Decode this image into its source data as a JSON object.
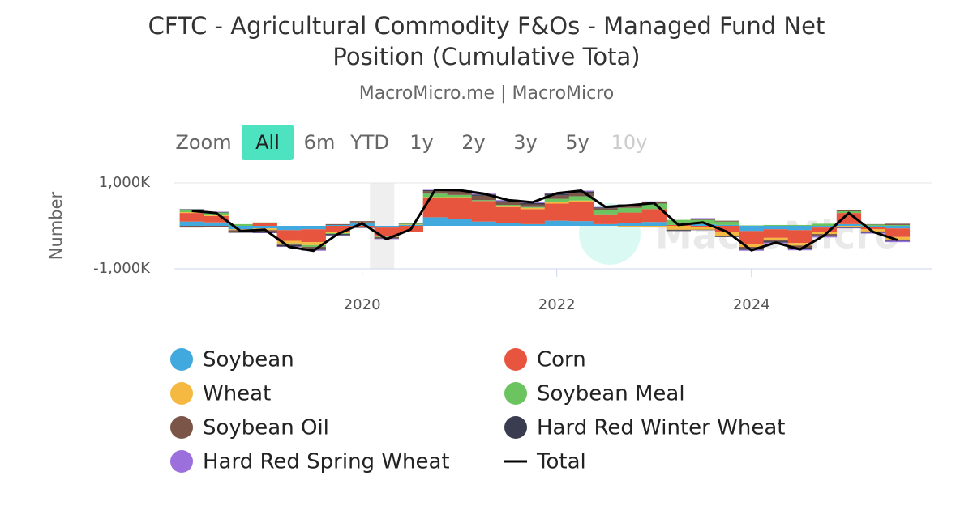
{
  "chart_data": {
    "type": "stacked-bar",
    "title": "CFTC - Agricultural Commodity F&Os - Managed Fund Net Position (Cumulative Tota)",
    "subtitle": "MacroMicro.me | MacroMicro",
    "watermark": "MacroMicro",
    "range_selector": {
      "label": "Zoom",
      "buttons": [
        "All",
        "6m",
        "YTD",
        "1y",
        "2y",
        "3y",
        "5y",
        "10y"
      ],
      "active": "All",
      "disabled": [
        "10y"
      ]
    },
    "y_label": "Number",
    "x": [
      2018.25,
      2018.5,
      2018.75,
      2019,
      2019.25,
      2019.5,
      2019.75,
      2020,
      2020.25,
      2020.5,
      2020.75,
      2021,
      2021.25,
      2021.5,
      2021.75,
      2022,
      2022.25,
      2022.5,
      2022.75,
      2023,
      2023.25,
      2023.5,
      2023.75,
      2024,
      2024.25,
      2024.5,
      2024.75,
      2025,
      2025.25,
      2025.5
    ],
    "xlim": [
      2018.07,
      2025.86
    ],
    "xticks": [
      2020,
      2022,
      2024
    ],
    "ylim": [
      -1000000,
      1000000
    ],
    "yticks": [
      {
        "value": -1000000,
        "label": "-1,000K"
      },
      {
        "value": 1000000,
        "label": "1,000K"
      }
    ],
    "shaded_x": [
      2020.08,
      2020.33
    ],
    "series": [
      {
        "name": "Soybean",
        "color": "#41a9dd",
        "values": [
          100000,
          80000,
          -80000,
          -60000,
          -100000,
          -80000,
          20000,
          60000,
          -40000,
          20000,
          200000,
          160000,
          100000,
          60000,
          40000,
          120000,
          110000,
          40000,
          60000,
          90000,
          0,
          40000,
          20000,
          -120000,
          -80000,
          -100000,
          -40000,
          40000,
          -20000,
          -60000
        ]
      },
      {
        "name": "Corn",
        "color": "#e8553e",
        "values": [
          200000,
          150000,
          0,
          60000,
          -250000,
          -300000,
          -150000,
          -40000,
          -200000,
          -150000,
          450000,
          500000,
          480000,
          380000,
          350000,
          400000,
          450000,
          230000,
          250000,
          300000,
          20000,
          -20000,
          -150000,
          -300000,
          -200000,
          -300000,
          -100000,
          260000,
          -60000,
          -200000
        ]
      },
      {
        "name": "Wheat",
        "color": "#f5b942",
        "values": [
          20000,
          30000,
          -20000,
          -40000,
          -60000,
          -70000,
          -20000,
          20000,
          -10000,
          10000,
          20000,
          10000,
          0,
          20000,
          30000,
          40000,
          30000,
          0,
          -20000,
          -40000,
          -90000,
          -70000,
          -80000,
          -70000,
          -40000,
          -60000,
          -50000,
          -30000,
          -50000,
          -60000
        ]
      },
      {
        "name": "Soybean Meal",
        "color": "#6cc461",
        "values": [
          60000,
          50000,
          40000,
          20000,
          -20000,
          -40000,
          -20000,
          0,
          -10000,
          20000,
          80000,
          50000,
          20000,
          30000,
          20000,
          70000,
          100000,
          90000,
          110000,
          130000,
          120000,
          100000,
          80000,
          10000,
          20000,
          20000,
          50000,
          40000,
          30000,
          20000
        ]
      },
      {
        "name": "Soybean Oil",
        "color": "#7b5548",
        "values": [
          -40000,
          -30000,
          -50000,
          -40000,
          -20000,
          -30000,
          20000,
          30000,
          -30000,
          10000,
          60000,
          90000,
          100000,
          60000,
          60000,
          80000,
          70000,
          50000,
          60000,
          30000,
          -10000,
          30000,
          20000,
          -30000,
          -40000,
          -50000,
          -30000,
          20000,
          10000,
          30000
        ]
      },
      {
        "name": "Hard Red Winter Wheat",
        "color": "#3a3d4f",
        "values": [
          10000,
          10000,
          -10000,
          -20000,
          -30000,
          -40000,
          -30000,
          -10000,
          -10000,
          10000,
          20000,
          10000,
          30000,
          30000,
          30000,
          40000,
          40000,
          20000,
          20000,
          10000,
          -20000,
          -10000,
          -30000,
          -40000,
          -30000,
          -40000,
          -30000,
          -20000,
          -30000,
          -30000
        ]
      },
      {
        "name": "Hard Red Spring Wheat",
        "color": "#9b6fdc",
        "values": [
          0,
          10000,
          0,
          -10000,
          -10000,
          -20000,
          -10000,
          0,
          -10000,
          0,
          10000,
          10000,
          20000,
          20000,
          20000,
          10000,
          20000,
          10000,
          0,
          10000,
          0,
          10000,
          0,
          -20000,
          -20000,
          -20000,
          -20000,
          -10000,
          -20000,
          -30000
        ]
      },
      {
        "name": "Total",
        "color": "#000000",
        "line": true,
        "values": [
          350000,
          300000,
          -120000,
          -90000,
          -490000,
          -580000,
          -190000,
          60000,
          -310000,
          -80000,
          840000,
          830000,
          750000,
          600000,
          550000,
          760000,
          820000,
          440000,
          480000,
          530000,
          20000,
          80000,
          -140000,
          -570000,
          -390000,
          -550000,
          -220000,
          300000,
          -140000,
          -330000
        ]
      }
    ]
  }
}
